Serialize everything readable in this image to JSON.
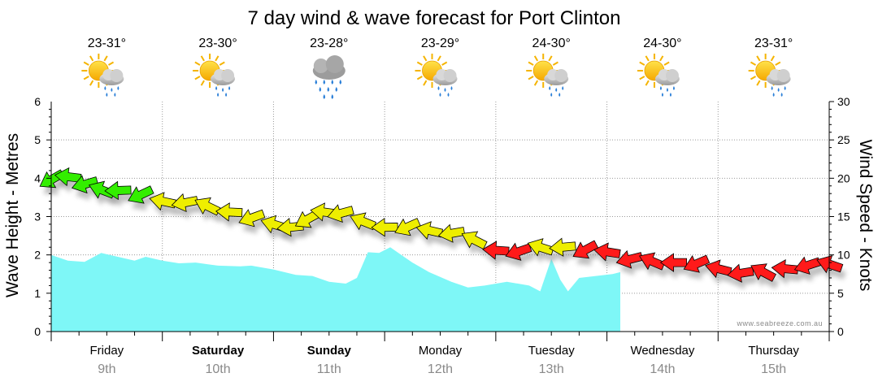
{
  "chart_data": {
    "type": "area",
    "title": "7 day wind & wave forecast for Port Clinton",
    "ylabel_left": "Wave Height - Metres",
    "ylabel_right": "Wind Speed - Knots",
    "ylim_left": [
      0,
      6
    ],
    "ylim_right": [
      0,
      30
    ],
    "yticks_left": [
      "0",
      "1",
      "2",
      "3",
      "4",
      "5",
      "6"
    ],
    "yticks_right": [
      "0",
      "5",
      "10",
      "15",
      "20",
      "25",
      "30"
    ],
    "grid": true,
    "credit": "www.seabreeze.com.au",
    "days": [
      {
        "day": "Friday",
        "date": "9th",
        "temp": "23-31°",
        "weather": "partly-cloudy-showers",
        "bold": false
      },
      {
        "day": "Saturday",
        "date": "10th",
        "temp": "23-30°",
        "weather": "partly-cloudy-showers",
        "bold": true
      },
      {
        "day": "Sunday",
        "date": "11th",
        "temp": "23-28°",
        "weather": "rain",
        "bold": true
      },
      {
        "day": "Monday",
        "date": "12th",
        "temp": "23-29°",
        "weather": "partly-cloudy-showers",
        "bold": false
      },
      {
        "day": "Tuesday",
        "date": "13th",
        "temp": "24-30°",
        "weather": "partly-cloudy-showers",
        "bold": false
      },
      {
        "day": "Wednesday",
        "date": "14th",
        "temp": "24-30°",
        "weather": "partly-cloudy-showers",
        "bold": false
      },
      {
        "day": "Thursday",
        "date": "15th",
        "temp": "23-31°",
        "weather": "partly-cloudy-showers",
        "bold": false
      }
    ],
    "series": [
      {
        "name": "Wave Height",
        "axis": "left",
        "color": "#7ef7f7",
        "x_days": [
          0,
          0.15,
          0.3,
          0.45,
          0.6,
          0.75,
          0.85,
          1.0,
          1.15,
          1.3,
          1.5,
          1.7,
          1.8,
          2.0,
          2.2,
          2.35,
          2.5,
          2.65,
          2.75,
          2.85,
          2.95,
          3.05,
          3.15,
          3.25,
          3.4,
          3.6,
          3.75,
          3.9,
          4.1,
          4.3,
          4.4,
          4.5,
          4.58,
          4.65,
          4.75,
          4.9,
          5.05,
          5.12
        ],
        "values": [
          2.0,
          1.85,
          1.82,
          2.05,
          1.95,
          1.85,
          1.95,
          1.85,
          1.78,
          1.8,
          1.72,
          1.7,
          1.72,
          1.62,
          1.48,
          1.45,
          1.3,
          1.25,
          1.4,
          2.07,
          2.05,
          2.2,
          2.0,
          1.8,
          1.55,
          1.3,
          1.15,
          1.2,
          1.3,
          1.2,
          1.05,
          1.9,
          1.35,
          1.05,
          1.4,
          1.45,
          1.5,
          1.55
        ]
      },
      {
        "name": "Wind Speed",
        "axis": "right",
        "x_days": [
          0.0,
          0.15,
          0.3,
          0.45,
          0.6,
          0.8,
          1.0,
          1.2,
          1.4,
          1.6,
          1.8,
          2.0,
          2.15,
          2.3,
          2.45,
          2.6,
          2.8,
          3.0,
          3.2,
          3.4,
          3.6,
          3.8,
          4.0,
          4.2,
          4.4,
          4.6,
          4.8,
          5.0,
          5.2,
          5.4,
          5.6,
          5.8,
          6.0,
          6.2,
          6.4,
          6.6,
          6.8,
          7.0
        ],
        "values": [
          19.8,
          20.2,
          19.2,
          18.5,
          18.4,
          17.8,
          17.0,
          16.8,
          16.4,
          15.6,
          14.8,
          14.0,
          13.6,
          14.6,
          15.6,
          15.4,
          14.4,
          13.6,
          13.6,
          13.2,
          12.8,
          12.0,
          10.6,
          10.4,
          11.0,
          11.0,
          10.6,
          10.4,
          9.4,
          9.2,
          9.0,
          8.8,
          8.2,
          7.6,
          7.8,
          8.2,
          8.6,
          8.8
        ],
        "colors": [
          "#33ee00",
          "#33ee00",
          "#33ee00",
          "#33ee00",
          "#33ee00",
          "#33ee00",
          "#eeee00",
          "#eeee00",
          "#eeee00",
          "#eeee00",
          "#eeee00",
          "#eeee00",
          "#eeee00",
          "#eeee00",
          "#eeee00",
          "#eeee00",
          "#eeee00",
          "#eeee00",
          "#eeee00",
          "#eeee00",
          "#eeee00",
          "#eeee00",
          "#ff1a1a",
          "#ff1a1a",
          "#eeee00",
          "#eeee00",
          "#ff1a1a",
          "#ff1a1a",
          "#ff1a1a",
          "#ff1a1a",
          "#ff1a1a",
          "#ff1a1a",
          "#ff1a1a",
          "#ff1a1a",
          "#ff1a1a",
          "#ff1a1a",
          "#ff1a1a",
          "#ff1a1a"
        ]
      }
    ],
    "wind_direction_arrow_color": {
      "light": "#33ee00",
      "moderate": "#eeee00",
      "strong": "#ff1a1a"
    }
  }
}
